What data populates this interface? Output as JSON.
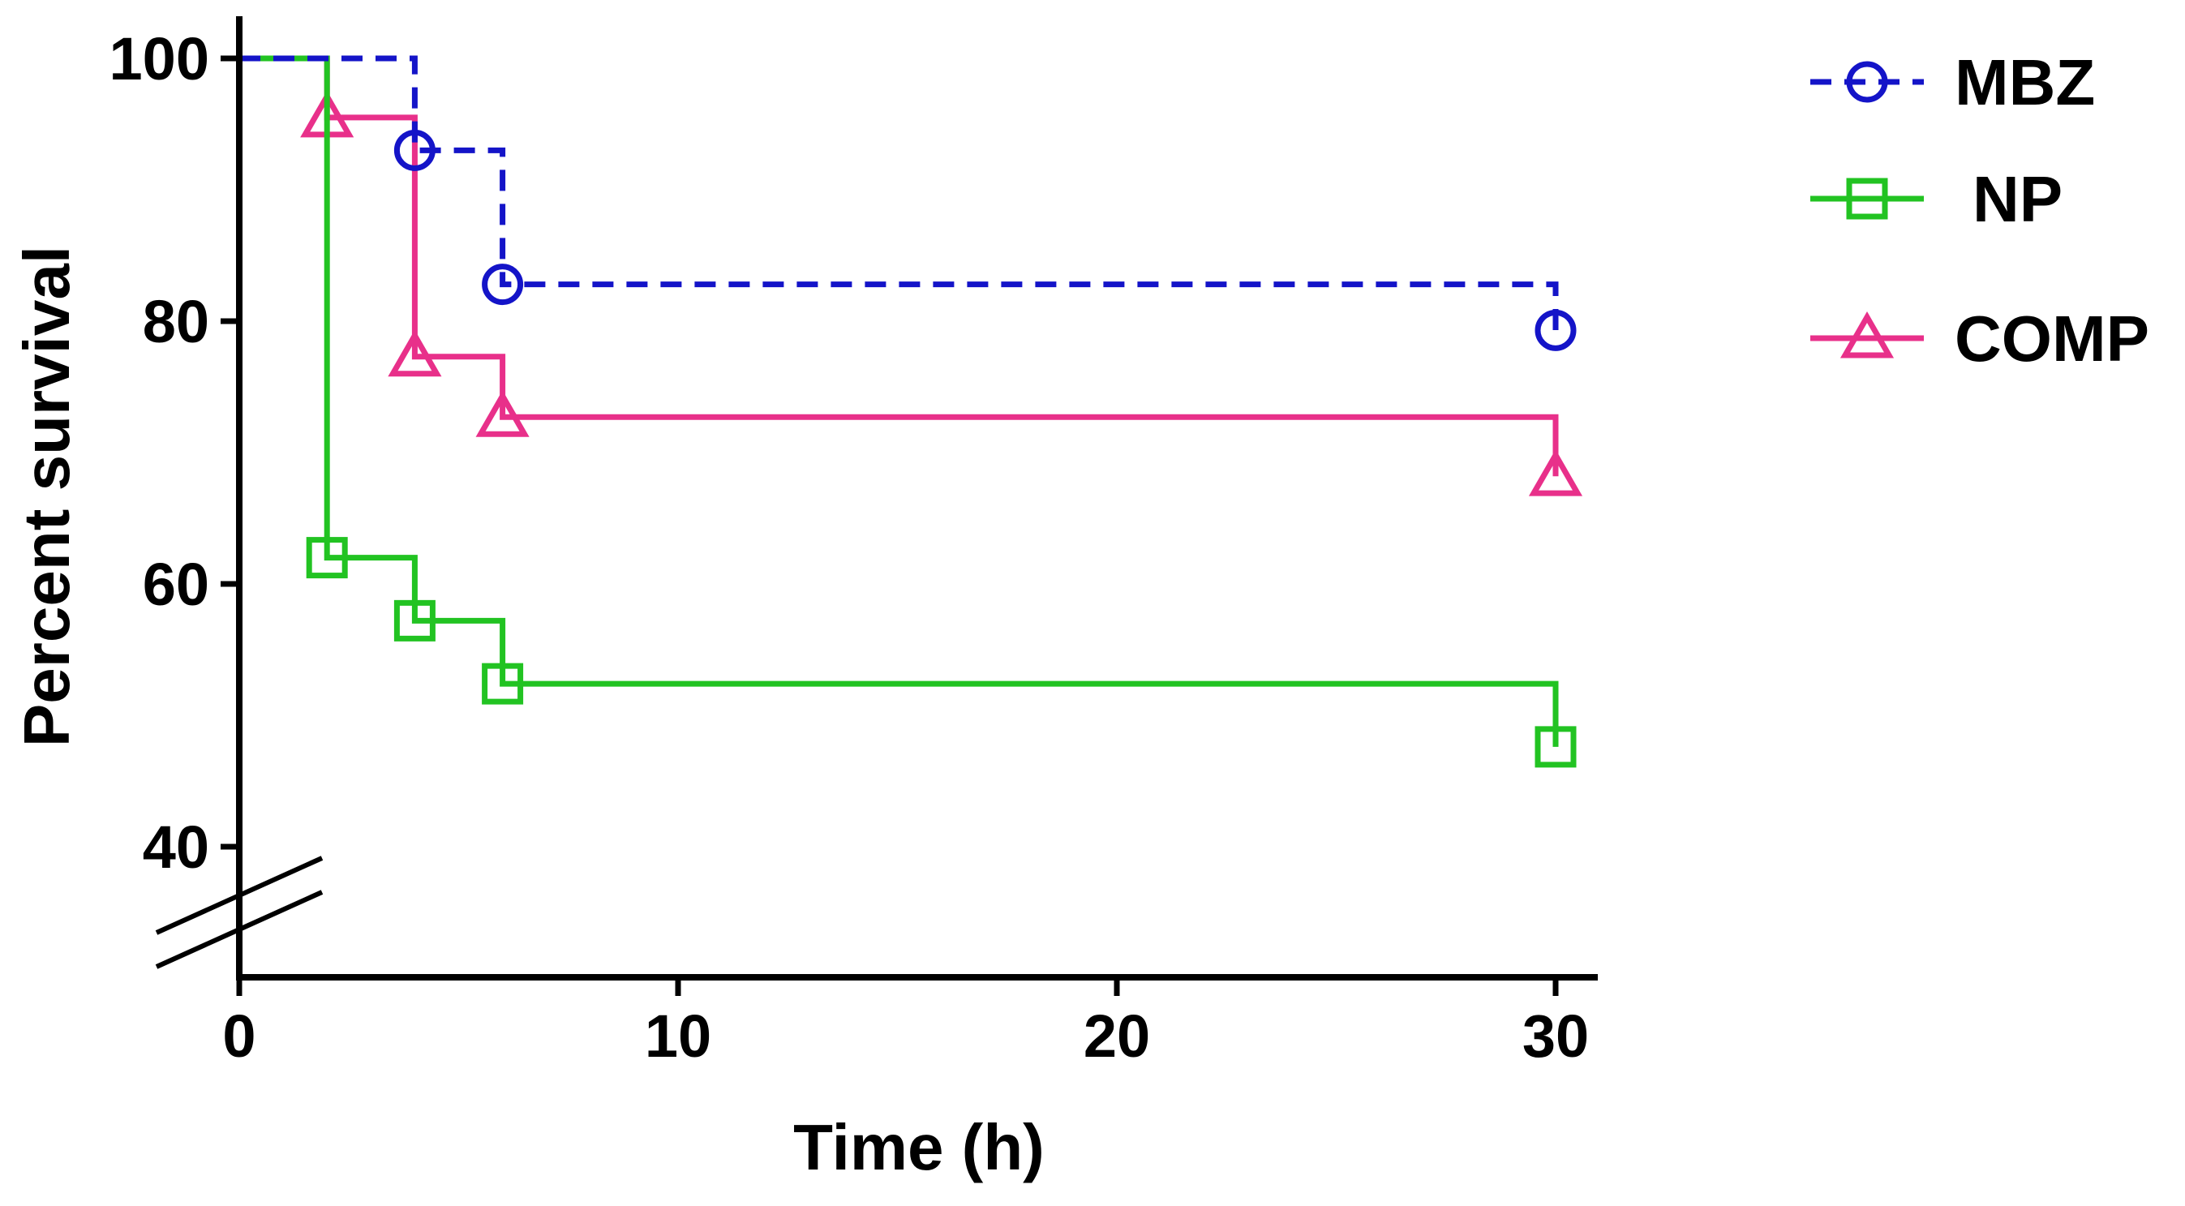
{
  "chart_data": {
    "type": "line",
    "subtype": "kaplan-meier-step",
    "title": "",
    "xlabel": "Time (h)",
    "ylabel": "Percent survival",
    "xlim": [
      0,
      31
    ],
    "ylim": [
      30,
      102
    ],
    "y_axis_break": true,
    "x_ticks": [
      0,
      10,
      20,
      30
    ],
    "x_tick_labels": [
      "0",
      "10",
      "20",
      "30"
    ],
    "y_ticks": [
      40,
      60,
      80,
      100
    ],
    "y_tick_labels": [
      "40",
      "60",
      "80",
      "100"
    ],
    "grid": false,
    "legend_position": "top-right",
    "series": [
      {
        "name": "MBZ",
        "color": "#1414c8",
        "line_style": "dashed",
        "marker": "circle",
        "steps": [
          [
            0,
            100
          ],
          [
            4,
            100
          ],
          [
            4,
            93
          ],
          [
            6,
            93
          ],
          [
            6,
            82.8
          ],
          [
            30,
            82.8
          ],
          [
            30,
            79.3
          ]
        ],
        "markers": [
          [
            4,
            93
          ],
          [
            6,
            82.8
          ],
          [
            30,
            79.3
          ]
        ]
      },
      {
        "name": "NP",
        "color": "#22c322",
        "line_style": "solid",
        "marker": "square",
        "steps": [
          [
            0,
            100
          ],
          [
            2,
            100
          ],
          [
            2,
            62
          ],
          [
            4,
            62
          ],
          [
            4,
            57.2
          ],
          [
            6,
            57.2
          ],
          [
            6,
            52.4
          ],
          [
            30,
            52.4
          ],
          [
            30,
            47.6
          ]
        ],
        "markers": [
          [
            2,
            62
          ],
          [
            4,
            57.2
          ],
          [
            6,
            52.4
          ],
          [
            30,
            47.6
          ]
        ]
      },
      {
        "name": "COMP",
        "color": "#e8308a",
        "line_style": "solid",
        "marker": "triangle",
        "steps": [
          [
            0,
            100
          ],
          [
            2,
            100
          ],
          [
            2,
            95.5
          ],
          [
            4,
            95.5
          ],
          [
            4,
            77.3
          ],
          [
            6,
            77.3
          ],
          [
            6,
            72.7
          ],
          [
            30,
            72.7
          ],
          [
            30,
            68.2
          ]
        ],
        "markers": [
          [
            2,
            95.5
          ],
          [
            4,
            77.3
          ],
          [
            6,
            72.7
          ],
          [
            30,
            68.2
          ]
        ]
      }
    ]
  }
}
